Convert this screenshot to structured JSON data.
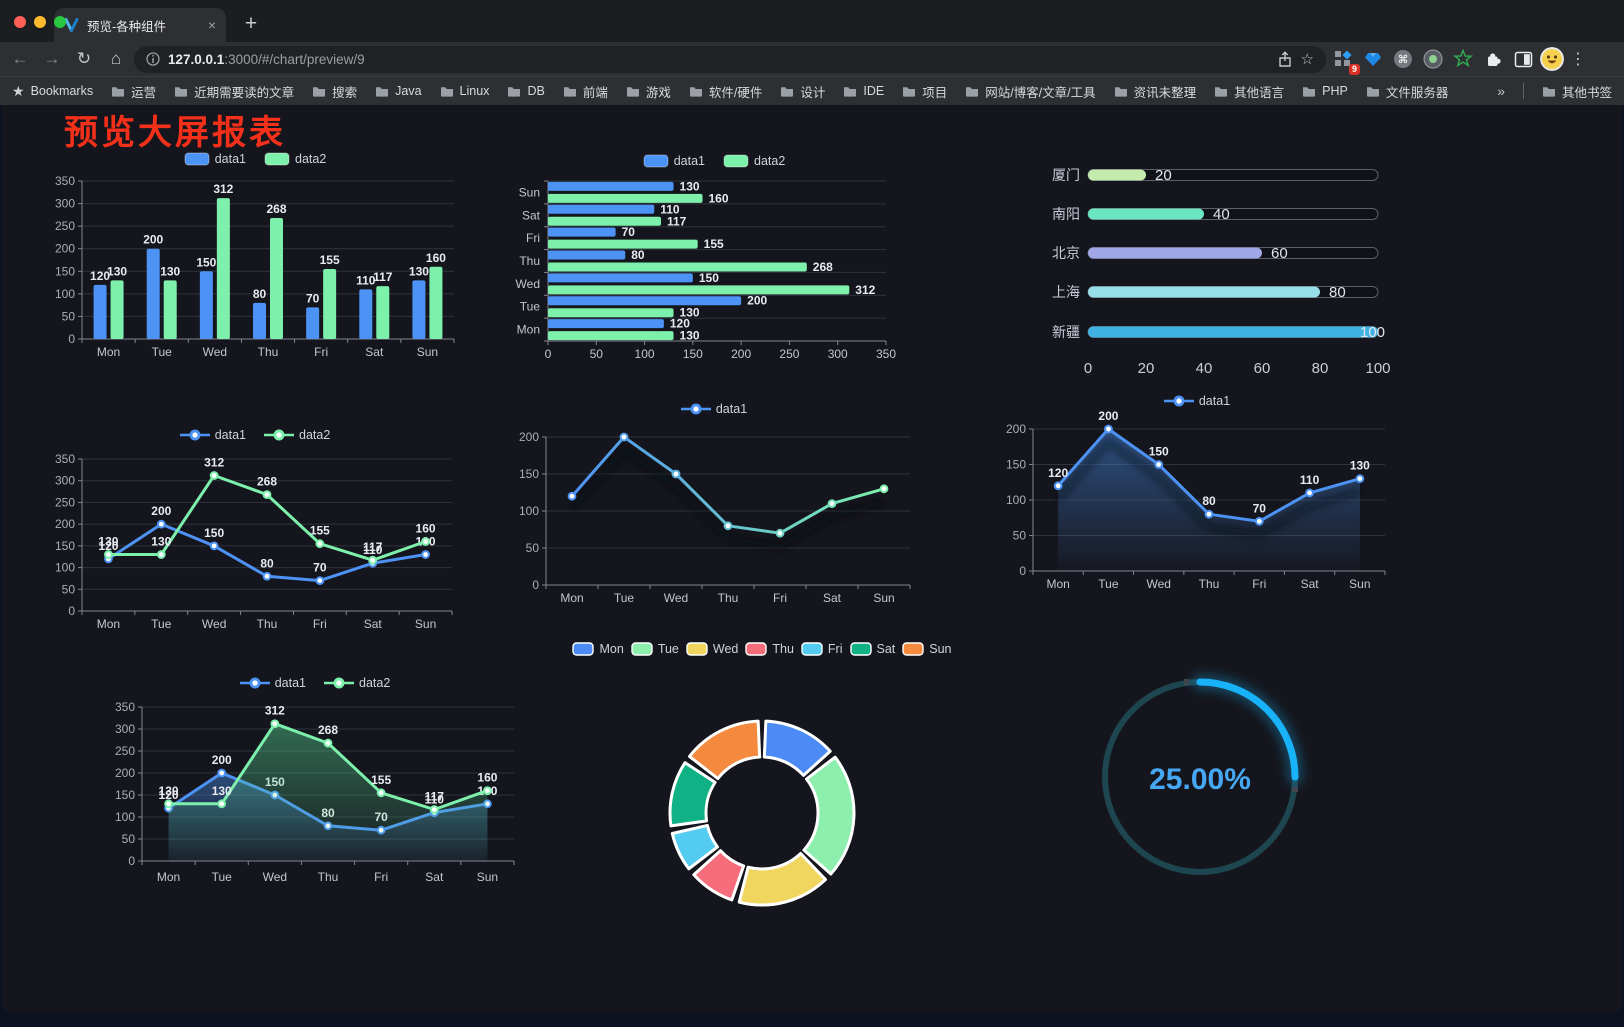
{
  "browser": {
    "tab": {
      "title": "预览-各种组件"
    },
    "url": {
      "host": "127.0.0.1",
      "rest": ":3000/#/chart/preview/9"
    },
    "extensions_badge": "9",
    "bookmarks_bar": {
      "label": "Bookmarks",
      "folders": [
        "运营",
        "近期需要读的文章",
        "搜索",
        "Java",
        "Linux",
        "DB",
        "前端",
        "游戏",
        "软件/硬件",
        "设计",
        "IDE",
        "项目",
        "网站/博客/文章/工具",
        "资讯未整理",
        "其他语言",
        "PHP",
        "文件服务器"
      ],
      "overflow": "»",
      "other": "其他书签"
    }
  },
  "page": {
    "title": "预览大屏报表",
    "title_color": "#f4301a"
  },
  "chart_data": [
    {
      "id": "bar-vertical",
      "type": "bar",
      "orientation": "vertical",
      "categories": [
        "Mon",
        "Tue",
        "Wed",
        "Thu",
        "Fri",
        "Sat",
        "Sun"
      ],
      "series": [
        {
          "name": "data1",
          "color": "#4d92f5",
          "values": [
            120,
            200,
            150,
            80,
            70,
            110,
            130
          ]
        },
        {
          "name": "data2",
          "color": "#7df0ac",
          "values": [
            130,
            130,
            312,
            268,
            155,
            117,
            160
          ]
        }
      ],
      "ylim": [
        0,
        350
      ],
      "ytick_step": 50,
      "value_labels": true,
      "legend_position": "top",
      "grid": true
    },
    {
      "id": "bar-horizontal",
      "type": "bar",
      "orientation": "horizontal",
      "categories": [
        "Mon",
        "Tue",
        "Wed",
        "Thu",
        "Fri",
        "Sat",
        "Sun"
      ],
      "series": [
        {
          "name": "data1",
          "color": "#4d92f5",
          "values": [
            120,
            200,
            150,
            80,
            70,
            110,
            130
          ]
        },
        {
          "name": "data2",
          "color": "#7df0ac",
          "values": [
            130,
            130,
            312,
            268,
            155,
            117,
            160
          ]
        }
      ],
      "xlim": [
        0,
        350
      ],
      "xtick_step": 50,
      "value_labels": true,
      "legend_position": "top",
      "grid": true
    },
    {
      "id": "progress-bars",
      "type": "bar",
      "subtype": "progress",
      "rows": [
        {
          "label": "厦门",
          "value": 20,
          "color": "#c4ebad"
        },
        {
          "label": "南阳",
          "value": 40,
          "color": "#6be6c1"
        },
        {
          "label": "北京",
          "value": 60,
          "color": "#a0a7e6"
        },
        {
          "label": "上海",
          "value": 80,
          "color": "#96dee8"
        },
        {
          "label": "新疆",
          "value": 100,
          "color": "#3fb1e3"
        }
      ],
      "xlim": [
        0,
        100
      ],
      "xticks": [
        0,
        20,
        40,
        60,
        80,
        100
      ]
    },
    {
      "id": "line-basic",
      "type": "line",
      "categories": [
        "Mon",
        "Tue",
        "Wed",
        "Thu",
        "Fri",
        "Sat",
        "Sun"
      ],
      "series": [
        {
          "name": "data1",
          "color": "#4d92f5",
          "values": [
            120,
            200,
            150,
            80,
            70,
            110,
            130
          ]
        },
        {
          "name": "data2",
          "color": "#7df0ac",
          "values": [
            130,
            130,
            312,
            268,
            155,
            117,
            160
          ]
        }
      ],
      "ylim": [
        0,
        350
      ],
      "ytick_step": 50,
      "value_labels": true,
      "legend_position": "top",
      "grid": true
    },
    {
      "id": "line-gradient",
      "type": "line",
      "categories": [
        "Mon",
        "Tue",
        "Wed",
        "Thu",
        "Fri",
        "Sat",
        "Sun"
      ],
      "series": [
        {
          "name": "data1",
          "gradient": [
            "#4d92f5",
            "#7df0ac"
          ],
          "values": [
            120,
            200,
            150,
            80,
            70,
            110,
            130
          ]
        }
      ],
      "ylim": [
        0,
        200
      ],
      "ytick_step": 50,
      "value_labels": false,
      "legend_position": "top",
      "grid": true
    },
    {
      "id": "line-area",
      "type": "area",
      "categories": [
        "Mon",
        "Tue",
        "Wed",
        "Thu",
        "Fri",
        "Sat",
        "Sun"
      ],
      "series": [
        {
          "name": "data1",
          "color": "#4d92f5",
          "values": [
            120,
            200,
            150,
            80,
            70,
            110,
            130
          ],
          "area": true,
          "area_from": "rgba(72,140,230,0.50)",
          "area_to": "rgba(72,140,230,0.02)"
        }
      ],
      "ylim": [
        0,
        200
      ],
      "ytick_step": 50,
      "value_labels": true,
      "legend_position": "top",
      "grid": true
    },
    {
      "id": "line-area-double",
      "type": "area",
      "categories": [
        "Mon",
        "Tue",
        "Wed",
        "Thu",
        "Fri",
        "Sat",
        "Sun"
      ],
      "series": [
        {
          "name": "data1",
          "color": "#4d92f5",
          "values": [
            120,
            200,
            150,
            80,
            70,
            110,
            130
          ],
          "area": true,
          "area_from": "rgba(72,140,230,0.45)",
          "area_to": "rgba(72,140,230,0.04)"
        },
        {
          "name": "data2",
          "color": "#7df0ac",
          "values": [
            130,
            130,
            312,
            268,
            155,
            117,
            160
          ],
          "area": true,
          "area_from": "rgba(85,210,145,0.45)",
          "area_to": "rgba(85,210,145,0.04)"
        }
      ],
      "ylim": [
        0,
        350
      ],
      "ytick_step": 50,
      "value_labels": true,
      "legend_position": "top",
      "grid": true
    },
    {
      "id": "donut",
      "type": "pie",
      "inner_radius_ratio": 0.61,
      "categories": [
        "Mon",
        "Tue",
        "Wed",
        "Thu",
        "Fri",
        "Sat",
        "Sun"
      ],
      "values": [
        120,
        200,
        150,
        80,
        70,
        110,
        130
      ],
      "colors": [
        "#4c8bf5",
        "#8defad",
        "#f0d55f",
        "#f56c7b",
        "#54ccf2",
        "#10b184",
        "#f58a3f"
      ],
      "border_color": "#ffffff",
      "legend_position": "top"
    },
    {
      "id": "gauge",
      "type": "gauge",
      "value": 25,
      "label": "25.00%",
      "color": "#18b2f8",
      "track_color": "#1d4650",
      "text_color": "#46a8f2"
    }
  ]
}
